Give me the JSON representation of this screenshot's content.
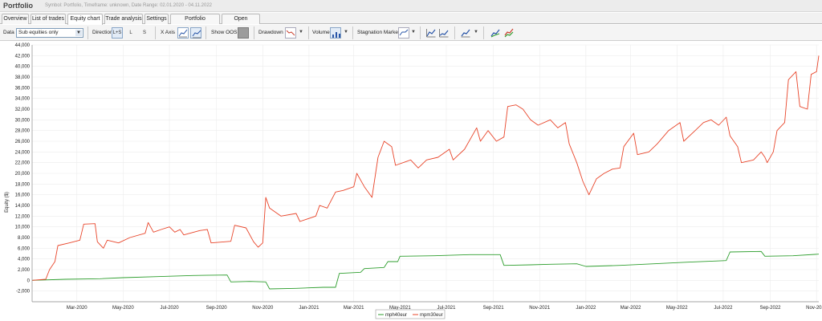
{
  "app": {
    "title": "Portfolio",
    "info": "Symbol: Portfolio, Timeframe: unknown, Date Range: 02.01.2020 - 04.11.2022"
  },
  "tabs": [
    {
      "label": "Overview",
      "active": false
    },
    {
      "label": "List of trades",
      "active": false
    },
    {
      "label": "Equity chart",
      "active": true
    },
    {
      "label": "Trade analysis",
      "active": false
    },
    {
      "label": "Settings",
      "active": false
    },
    {
      "label": "Portfolio correlation",
      "active": false
    },
    {
      "label": "Open balances",
      "active": false
    }
  ],
  "toolbar": {
    "data_label": "Data",
    "data_value": "Sub equities only",
    "direction_label": "Direction",
    "direction_options": [
      "L+S",
      "L",
      "S"
    ],
    "direction_selected": "L+S",
    "xaxis_label": "X Axis",
    "show_oos_label": "Show OOS",
    "drawdown_label": "Drawdown",
    "volume_label": "Volume",
    "stagnation_label": "Stagnation Marker",
    "dropdown_glyph": "▼"
  },
  "chart_data": {
    "type": "line",
    "ylabel": "Equity ($)",
    "ylim": [
      -4000,
      44000
    ],
    "yticks": [
      -2000,
      0,
      2000,
      4000,
      6000,
      8000,
      10000,
      12000,
      14000,
      16000,
      18000,
      20000,
      22000,
      24000,
      26000,
      28000,
      30000,
      32000,
      34000,
      36000,
      38000,
      40000,
      42000,
      44000
    ],
    "ytick_labels": [
      "-2,000",
      "0",
      "2,000",
      "4,000",
      "6,000",
      "8,000",
      "10,000",
      "12,000",
      "14,000",
      "16,000",
      "18,000",
      "20,000",
      "22,000",
      "24,000",
      "26,000",
      "28,000",
      "30,000",
      "32,000",
      "34,000",
      "36,000",
      "38,000",
      "40,000",
      "42,000",
      "44,000"
    ],
    "xlim": [
      "2020-01-02",
      "2022-11-04"
    ],
    "xticks": [
      "2020-03-01",
      "2020-05-01",
      "2020-07-01",
      "2020-09-01",
      "2020-11-01",
      "2021-01-01",
      "2021-03-01",
      "2021-05-01",
      "2021-07-01",
      "2021-09-01",
      "2021-11-01",
      "2022-01-01",
      "2022-03-01",
      "2022-05-01",
      "2022-07-01",
      "2022-09-01",
      "2022-11-01"
    ],
    "xtick_labels": [
      "Mar-2020",
      "May-2020",
      "Jul-2020",
      "Sep-2020",
      "Nov-2020",
      "Jan-2021",
      "Mar-2021",
      "May-2021",
      "Jul-2021",
      "Sep-2021",
      "Nov-2021",
      "Jan-2022",
      "Mar-2022",
      "May-2022",
      "Jul-2022",
      "Sep-2022",
      "Nov-2022"
    ],
    "grid": true,
    "legend_placement": "bottom-center",
    "series": [
      {
        "name": "mph40eur",
        "color": "#2e9e2e",
        "points": [
          [
            "2020-01-02",
            0
          ],
          [
            "2020-02-15",
            200
          ],
          [
            "2020-04-01",
            300
          ],
          [
            "2020-05-01",
            500
          ],
          [
            "2020-06-15",
            700
          ],
          [
            "2020-08-01",
            900
          ],
          [
            "2020-09-15",
            1000
          ],
          [
            "2020-09-20",
            -300
          ],
          [
            "2020-10-15",
            -200
          ],
          [
            "2020-11-05",
            -300
          ],
          [
            "2020-11-10",
            -1600
          ],
          [
            "2020-12-15",
            -1500
          ],
          [
            "2021-01-20",
            -1300
          ],
          [
            "2021-02-05",
            -1300
          ],
          [
            "2021-02-10",
            1300
          ],
          [
            "2021-03-10",
            1500
          ],
          [
            "2021-03-15",
            2200
          ],
          [
            "2021-04-10",
            2400
          ],
          [
            "2021-04-15",
            3500
          ],
          [
            "2021-04-28",
            3500
          ],
          [
            "2021-05-01",
            4500
          ],
          [
            "2021-06-15",
            4600
          ],
          [
            "2021-08-01",
            4800
          ],
          [
            "2021-09-10",
            4800
          ],
          [
            "2021-09-15",
            2800
          ],
          [
            "2021-10-20",
            2900
          ],
          [
            "2021-11-15",
            3000
          ],
          [
            "2021-12-20",
            3100
          ],
          [
            "2022-01-01",
            2600
          ],
          [
            "2022-02-15",
            2800
          ],
          [
            "2022-04-01",
            3100
          ],
          [
            "2022-05-15",
            3400
          ],
          [
            "2022-06-20",
            3600
          ],
          [
            "2022-07-05",
            3700
          ],
          [
            "2022-07-10",
            5300
          ],
          [
            "2022-08-20",
            5400
          ],
          [
            "2022-08-25",
            4500
          ],
          [
            "2022-10-01",
            4600
          ],
          [
            "2022-11-04",
            4900
          ]
        ]
      },
      {
        "name": "mpm30eur",
        "color": "#e8452a",
        "points": [
          [
            "2020-01-02",
            0
          ],
          [
            "2020-01-20",
            200
          ],
          [
            "2020-01-25",
            2000
          ],
          [
            "2020-02-01",
            3500
          ],
          [
            "2020-02-05",
            6500
          ],
          [
            "2020-02-20",
            7000
          ],
          [
            "2020-03-05",
            7500
          ],
          [
            "2020-03-10",
            10500
          ],
          [
            "2020-03-25",
            10600
          ],
          [
            "2020-03-28",
            7200
          ],
          [
            "2020-04-05",
            6000
          ],
          [
            "2020-04-10",
            7500
          ],
          [
            "2020-04-25",
            7000
          ],
          [
            "2020-05-10",
            8000
          ],
          [
            "2020-05-30",
            8800
          ],
          [
            "2020-06-03",
            10800
          ],
          [
            "2020-06-10",
            9000
          ],
          [
            "2020-06-20",
            9500
          ],
          [
            "2020-07-01",
            10000
          ],
          [
            "2020-07-08",
            9000
          ],
          [
            "2020-07-15",
            9500
          ],
          [
            "2020-07-20",
            8500
          ],
          [
            "2020-08-10",
            9300
          ],
          [
            "2020-08-20",
            9500
          ],
          [
            "2020-08-25",
            7000
          ],
          [
            "2020-09-20",
            7300
          ],
          [
            "2020-09-25",
            10300
          ],
          [
            "2020-10-10",
            9800
          ],
          [
            "2020-10-20",
            7200
          ],
          [
            "2020-10-26",
            6200
          ],
          [
            "2020-11-01",
            7000
          ],
          [
            "2020-11-05",
            15500
          ],
          [
            "2020-11-10",
            13500
          ],
          [
            "2020-11-25",
            12000
          ],
          [
            "2020-12-15",
            12500
          ],
          [
            "2020-12-20",
            11000
          ],
          [
            "2021-01-10",
            12000
          ],
          [
            "2021-01-15",
            14000
          ],
          [
            "2021-01-25",
            13500
          ],
          [
            "2021-02-05",
            16500
          ],
          [
            "2021-02-15",
            16800
          ],
          [
            "2021-03-01",
            17500
          ],
          [
            "2021-03-05",
            20000
          ],
          [
            "2021-03-15",
            17500
          ],
          [
            "2021-03-25",
            15500
          ],
          [
            "2021-04-02",
            23000
          ],
          [
            "2021-04-10",
            26000
          ],
          [
            "2021-04-20",
            25000
          ],
          [
            "2021-04-25",
            21500
          ],
          [
            "2021-05-15",
            22500
          ],
          [
            "2021-05-25",
            21000
          ],
          [
            "2021-06-05",
            22500
          ],
          [
            "2021-06-20",
            23000
          ],
          [
            "2021-07-05",
            24500
          ],
          [
            "2021-07-10",
            22500
          ],
          [
            "2021-07-25",
            24500
          ],
          [
            "2021-08-10",
            28500
          ],
          [
            "2021-08-15",
            26000
          ],
          [
            "2021-08-25",
            28000
          ],
          [
            "2021-09-05",
            26000
          ],
          [
            "2021-09-15",
            26800
          ],
          [
            "2021-09-20",
            32500
          ],
          [
            "2021-10-01",
            32800
          ],
          [
            "2021-10-10",
            32000
          ],
          [
            "2021-10-20",
            30000
          ],
          [
            "2021-10-30",
            29000
          ],
          [
            "2021-11-15",
            30000
          ],
          [
            "2021-11-25",
            28500
          ],
          [
            "2021-12-05",
            29500
          ],
          [
            "2021-12-10",
            25500
          ],
          [
            "2021-12-20",
            22000
          ],
          [
            "2021-12-28",
            18500
          ],
          [
            "2022-01-05",
            16000
          ],
          [
            "2022-01-15",
            19000
          ],
          [
            "2022-01-25",
            20000
          ],
          [
            "2022-02-05",
            20800
          ],
          [
            "2022-02-15",
            21000
          ],
          [
            "2022-02-20",
            25000
          ],
          [
            "2022-03-05",
            27500
          ],
          [
            "2022-03-10",
            23500
          ],
          [
            "2022-03-25",
            24000
          ],
          [
            "2022-04-05",
            25500
          ],
          [
            "2022-04-20",
            28000
          ],
          [
            "2022-05-05",
            29500
          ],
          [
            "2022-05-10",
            26000
          ],
          [
            "2022-05-25",
            28000
          ],
          [
            "2022-06-05",
            29500
          ],
          [
            "2022-06-15",
            30000
          ],
          [
            "2022-06-25",
            29000
          ],
          [
            "2022-07-05",
            30500
          ],
          [
            "2022-07-10",
            27000
          ],
          [
            "2022-07-20",
            25000
          ],
          [
            "2022-07-25",
            22000
          ],
          [
            "2022-08-10",
            22500
          ],
          [
            "2022-08-20",
            24000
          ],
          [
            "2022-08-25",
            23000
          ],
          [
            "2022-08-28",
            22000
          ],
          [
            "2022-09-05",
            24000
          ],
          [
            "2022-09-10",
            28000
          ],
          [
            "2022-09-20",
            29500
          ],
          [
            "2022-09-25",
            37500
          ],
          [
            "2022-10-05",
            39000
          ],
          [
            "2022-10-10",
            32500
          ],
          [
            "2022-10-20",
            32000
          ],
          [
            "2022-10-25",
            38500
          ],
          [
            "2022-11-01",
            39000
          ],
          [
            "2022-11-04",
            42000
          ]
        ]
      }
    ]
  }
}
